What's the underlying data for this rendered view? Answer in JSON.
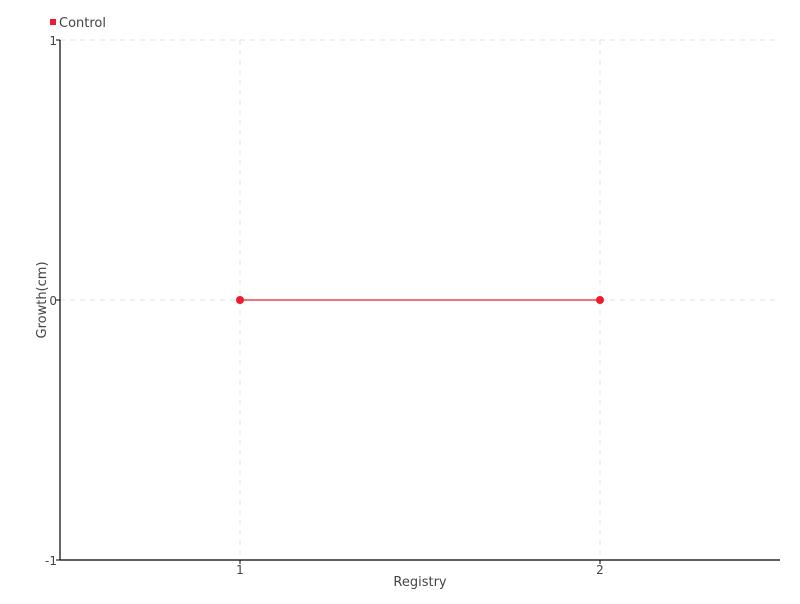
{
  "chart_data": {
    "type": "line",
    "title": "",
    "xlabel": "Registry",
    "ylabel": "Growth(cm)",
    "xlim": [
      0.5,
      2.5
    ],
    "ylim": [
      -1,
      1
    ],
    "xticks": [
      1,
      2
    ],
    "yticks": [
      -1,
      0,
      1
    ],
    "grid": true,
    "legend_position": "top-left",
    "series": [
      {
        "name": "Control",
        "color": "#ee1c2e",
        "x": [
          1,
          2
        ],
        "y": [
          0,
          0
        ]
      }
    ]
  }
}
